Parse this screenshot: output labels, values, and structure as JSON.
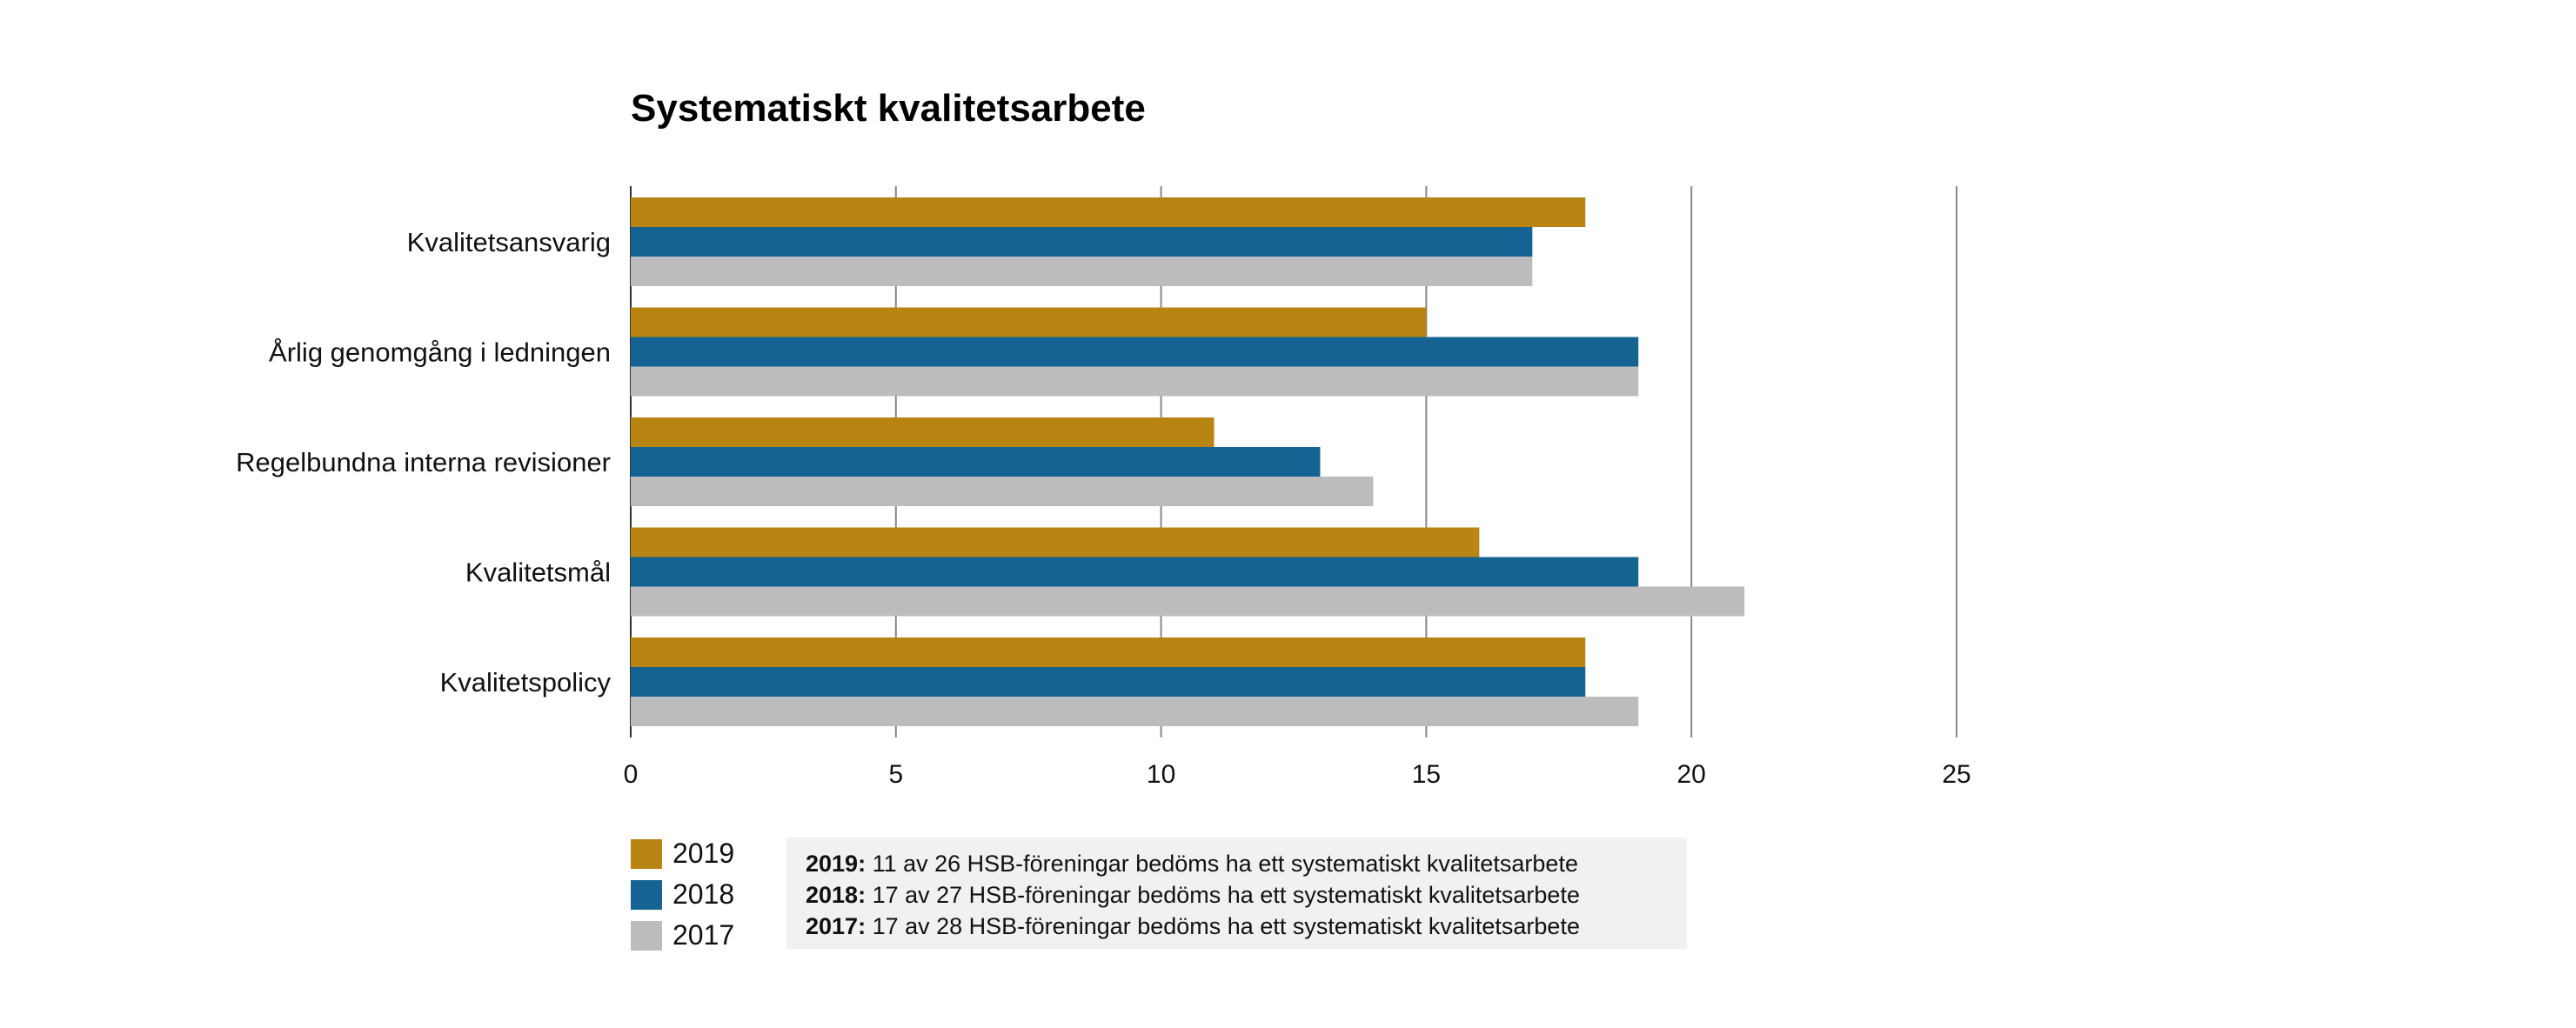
{
  "chart_data": {
    "type": "bar",
    "orientation": "horizontal",
    "title": "Systematiskt kvalitetsarbete",
    "categories": [
      "Kvalitetsansvarig",
      "Årlig genomgång i ledningen",
      "Regelbundna interna revisioner",
      "Kvalitetsmål",
      "Kvalitetspolicy"
    ],
    "series": [
      {
        "name": "2019",
        "color": "#b88412",
        "values": [
          18,
          15,
          11,
          16,
          18
        ]
      },
      {
        "name": "2018",
        "color": "#156393",
        "values": [
          17,
          19,
          13,
          19,
          18
        ]
      },
      {
        "name": "2017",
        "color": "#bcbbbd",
        "values": [
          17,
          19,
          14,
          21,
          19
        ]
      }
    ],
    "xlim": [
      0,
      25
    ],
    "xticks": [
      "0",
      "5",
      "10",
      "15",
      "20",
      "25"
    ],
    "grid": true,
    "legend_placement": "bottom-left"
  },
  "notes": [
    {
      "year": "2019:",
      "text": " 11 av 26 HSB-föreningar bedöms ha ett systematiskt kvalitetsarbete"
    },
    {
      "year": "2018:",
      "text": " 17 av 27 HSB-föreningar bedöms ha ett systematiskt kvalitetsarbete"
    },
    {
      "year": "2017:",
      "text": " 17 av 28 HSB-föreningar bedöms ha ett systematiskt kvalitetsarbete"
    }
  ]
}
